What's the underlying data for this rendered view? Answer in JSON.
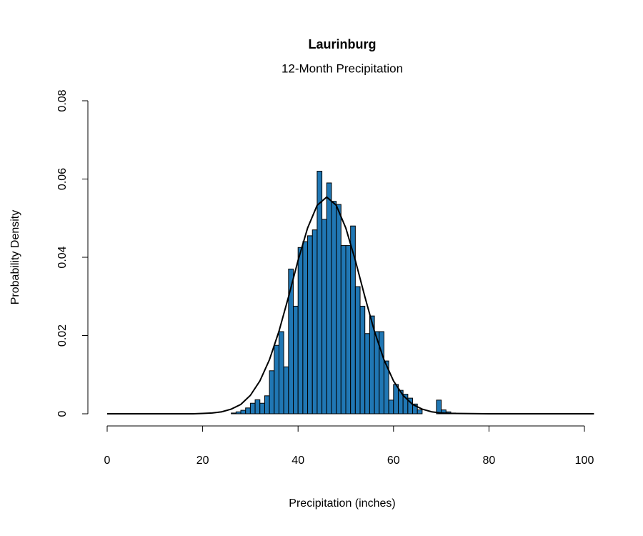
{
  "chart_data": {
    "type": "histogram",
    "title": "Laurinburg",
    "subtitle": "12-Month Precipitation",
    "x_label": "Precipitation (inches)",
    "y_label": "Probability Density",
    "color": "#2077b4",
    "bins": [
      0,
      1,
      2,
      3,
      4,
      5,
      6,
      7,
      8,
      9,
      10,
      11,
      12,
      13,
      14,
      15,
      16,
      17,
      18,
      19,
      20,
      21,
      22,
      23,
      24,
      25,
      26,
      27,
      28,
      29,
      30,
      31,
      32,
      33,
      34,
      35,
      36,
      37,
      38,
      39,
      40,
      41,
      42,
      43,
      44,
      45,
      46,
      47,
      48,
      49,
      50,
      51,
      52,
      53,
      54,
      55,
      56,
      57,
      58,
      59,
      60,
      61,
      62,
      63,
      64,
      65,
      66,
      67,
      68,
      69,
      70,
      71,
      72,
      73,
      74,
      75,
      76,
      77,
      78,
      79,
      80,
      81,
      82,
      83,
      84,
      85,
      86,
      87,
      88,
      89,
      90,
      91,
      92,
      93,
      94,
      95,
      96,
      97,
      98,
      99,
      100,
      101,
      102,
      103
    ],
    "values": [
      0,
      0,
      0,
      0,
      0,
      0,
      0,
      0,
      0,
      0,
      0,
      0,
      0,
      0,
      0,
      0,
      0,
      0,
      0,
      0,
      0,
      0,
      0,
      0,
      0,
      0,
      0.0002,
      0.0005,
      0.0009,
      0.0015,
      0.0027,
      0.0036,
      0.0027,
      0.0046,
      0.011,
      0.0175,
      0.021,
      0.012,
      0.037,
      0.0275,
      0.0425,
      0.044,
      0.0455,
      0.047,
      0.062,
      0.0497,
      0.059,
      0.0543,
      0.0535,
      0.043,
      0.043,
      0.048,
      0.0325,
      0.0275,
      0.0205,
      0.025,
      0.021,
      0.021,
      0.0135,
      0.0035,
      0.0075,
      0.006,
      0.005,
      0.004,
      0.0025,
      0.001,
      0,
      0,
      0,
      0.0035,
      0.001,
      0.0005,
      0.0002,
      0,
      0,
      0,
      0,
      0,
      0,
      0,
      0,
      0,
      0,
      0,
      0,
      0,
      0,
      0,
      0,
      0,
      0,
      0,
      0,
      0,
      0,
      0,
      0,
      0,
      0,
      0,
      0,
      0,
      0,
      0
    ],
    "density_curve": {
      "color": "#000000",
      "x": [
        0,
        10,
        18,
        20,
        22,
        24,
        26,
        28,
        30,
        32,
        34,
        36,
        38,
        40,
        42,
        44,
        46,
        48,
        50,
        52,
        54,
        56,
        58,
        60,
        62,
        64,
        66,
        68,
        70,
        72,
        80,
        90,
        102
      ],
      "values": [
        0,
        0,
        0,
        0.0001,
        0.0002,
        0.0005,
        0.0012,
        0.0024,
        0.0047,
        0.0084,
        0.0138,
        0.0211,
        0.0299,
        0.0392,
        0.0475,
        0.0533,
        0.0554,
        0.0533,
        0.0475,
        0.0392,
        0.0299,
        0.0211,
        0.0138,
        0.0084,
        0.0047,
        0.0024,
        0.0012,
        0.0005,
        0.0002,
        0.0001,
        0,
        0,
        0
      ]
    },
    "xlim": [
      0,
      100
    ],
    "xticks": [
      0,
      20,
      40,
      60,
      80,
      100
    ],
    "ylim": [
      0,
      0.08
    ],
    "yticks": [
      0,
      0.02,
      0.04,
      0.06,
      0.08
    ]
  }
}
